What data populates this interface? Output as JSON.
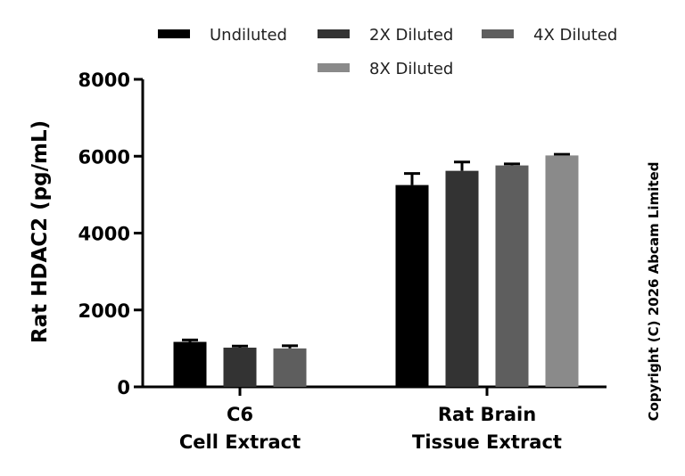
{
  "chart_data": {
    "type": "bar",
    "title": "",
    "ylabel": "Rat HDAC2 (pg/mL)",
    "xlabel": "",
    "ylim": [
      0,
      8000
    ],
    "yticks": [
      0,
      2000,
      4000,
      6000,
      8000
    ],
    "yticks_labels": [
      "0",
      "2000",
      "4000",
      "6000",
      "8000"
    ],
    "categories": [
      {
        "line1": "C6",
        "line2": "Cell Extract"
      },
      {
        "line1": "Rat Brain",
        "line2": "Tissue Extract"
      }
    ],
    "series": [
      {
        "name": "Undiluted",
        "color": "#000000",
        "values": [
          1170,
          5250
        ],
        "errors": [
          50,
          300
        ]
      },
      {
        "name": "2X Diluted",
        "color": "#333333",
        "values": [
          1020,
          5620
        ],
        "errors": [
          40,
          230
        ]
      },
      {
        "name": "4X Diluted",
        "color": "#5e5e5e",
        "values": [
          1000,
          5760
        ],
        "errors": [
          70,
          40
        ]
      },
      {
        "name": "8X Diluted",
        "color": "#8a8a8a",
        "values": [
          null,
          6020
        ],
        "errors": [
          null,
          30
        ]
      }
    ],
    "legend_position": "top",
    "grid": false
  },
  "copyright": "Copyright (C) 2026 Abcam Limited"
}
